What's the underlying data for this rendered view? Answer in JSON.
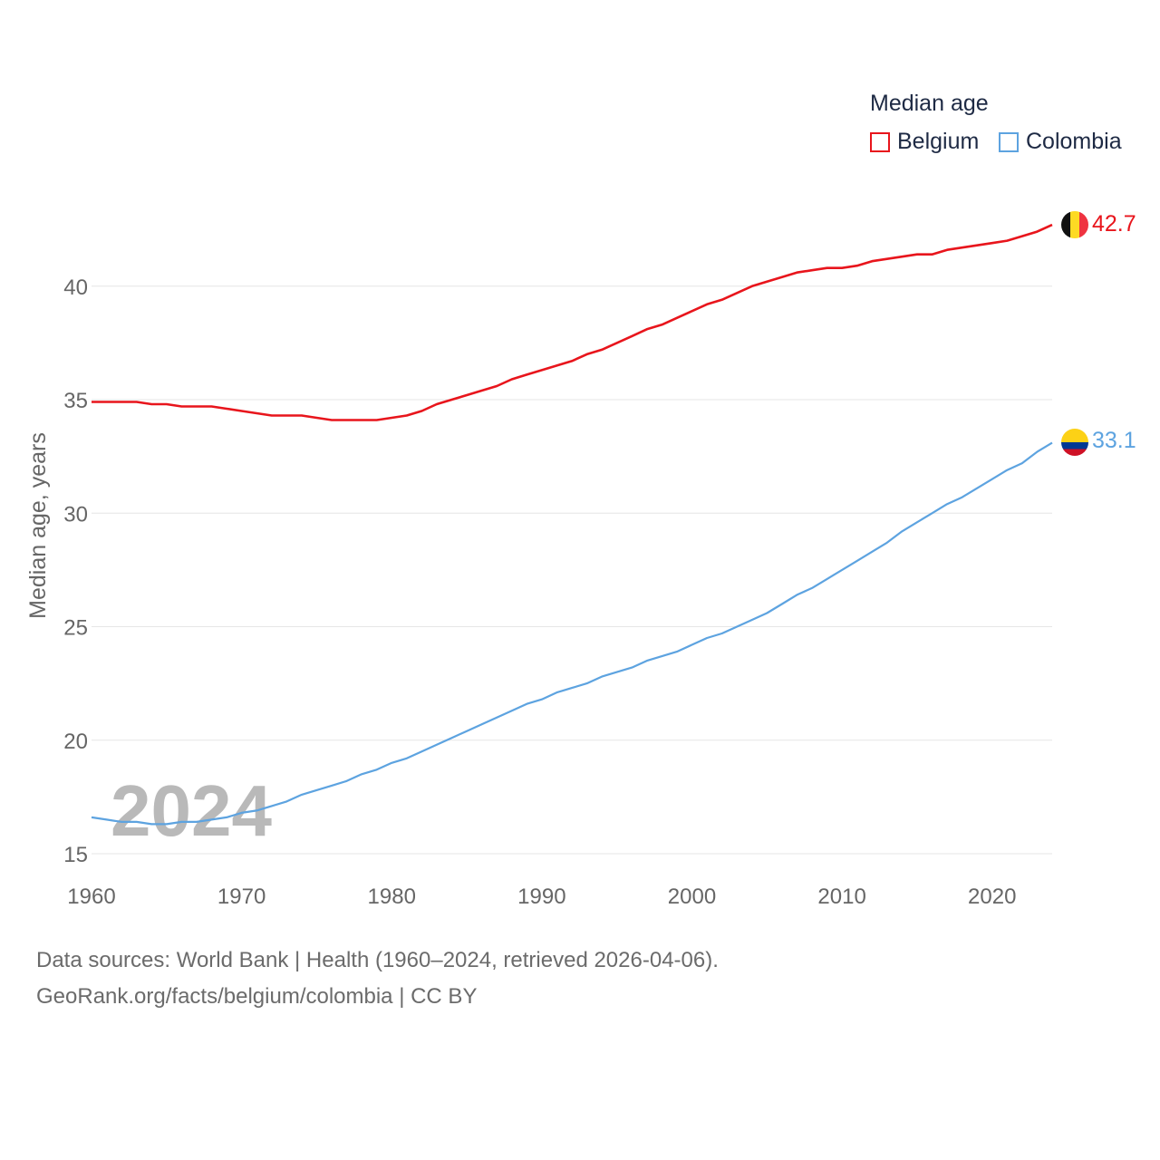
{
  "legend": {
    "title": "Median age",
    "items": [
      {
        "label": "Belgium",
        "color": "#e8151c"
      },
      {
        "label": "Colombia",
        "color": "#5da3e0"
      }
    ]
  },
  "footer": {
    "source": "Data sources: World Bank | Health (1960–2024, retrieved 2026-04-06).",
    "credit": "GeoRank.org/facts/belgium/colombia | CC BY"
  },
  "chart_data": {
    "type": "line",
    "title": "Median age",
    "xlabel": "",
    "ylabel": "Median age, years",
    "xlim": [
      1960,
      2024
    ],
    "ylim": [
      15,
      44
    ],
    "xticks": [
      1960,
      1970,
      1980,
      1990,
      2000,
      2010,
      2020
    ],
    "yticks": [
      15,
      20,
      25,
      30,
      35,
      40
    ],
    "grid": true,
    "legend_position": "top-right",
    "year_label": "2024",
    "x": [
      1960,
      1961,
      1962,
      1963,
      1964,
      1965,
      1966,
      1967,
      1968,
      1969,
      1970,
      1971,
      1972,
      1973,
      1974,
      1975,
      1976,
      1977,
      1978,
      1979,
      1980,
      1981,
      1982,
      1983,
      1984,
      1985,
      1986,
      1987,
      1988,
      1989,
      1990,
      1991,
      1992,
      1993,
      1994,
      1995,
      1996,
      1997,
      1998,
      1999,
      2000,
      2001,
      2002,
      2003,
      2004,
      2005,
      2006,
      2007,
      2008,
      2009,
      2010,
      2011,
      2012,
      2013,
      2014,
      2015,
      2016,
      2017,
      2018,
      2019,
      2020,
      2021,
      2022,
      2023,
      2024
    ],
    "series": [
      {
        "name": "Belgium",
        "color": "#e8151c",
        "end_label": "42.7",
        "values": [
          34.9,
          34.9,
          34.9,
          34.9,
          34.8,
          34.8,
          34.7,
          34.7,
          34.7,
          34.6,
          34.5,
          34.4,
          34.3,
          34.3,
          34.3,
          34.2,
          34.1,
          34.1,
          34.1,
          34.1,
          34.2,
          34.3,
          34.5,
          34.8,
          35.0,
          35.2,
          35.4,
          35.6,
          35.9,
          36.1,
          36.3,
          36.5,
          36.7,
          37.0,
          37.2,
          37.5,
          37.8,
          38.1,
          38.3,
          38.6,
          38.9,
          39.2,
          39.4,
          39.7,
          40.0,
          40.2,
          40.4,
          40.6,
          40.7,
          40.8,
          40.8,
          40.9,
          41.1,
          41.2,
          41.3,
          41.4,
          41.4,
          41.6,
          41.7,
          41.8,
          41.9,
          42.0,
          42.2,
          42.4,
          42.7
        ]
      },
      {
        "name": "Colombia",
        "color": "#5da3e0",
        "end_label": "33.1",
        "values": [
          16.6,
          16.5,
          16.4,
          16.4,
          16.3,
          16.3,
          16.4,
          16.4,
          16.5,
          16.6,
          16.8,
          16.9,
          17.1,
          17.3,
          17.6,
          17.8,
          18.0,
          18.2,
          18.5,
          18.7,
          19.0,
          19.2,
          19.5,
          19.8,
          20.1,
          20.4,
          20.7,
          21.0,
          21.3,
          21.6,
          21.8,
          22.1,
          22.3,
          22.5,
          22.8,
          23.0,
          23.2,
          23.5,
          23.7,
          23.9,
          24.2,
          24.5,
          24.7,
          25.0,
          25.3,
          25.6,
          26.0,
          26.4,
          26.7,
          27.1,
          27.5,
          27.9,
          28.3,
          28.7,
          29.2,
          29.6,
          30.0,
          30.4,
          30.7,
          31.1,
          31.5,
          31.9,
          32.2,
          32.7,
          33.1
        ]
      }
    ]
  }
}
